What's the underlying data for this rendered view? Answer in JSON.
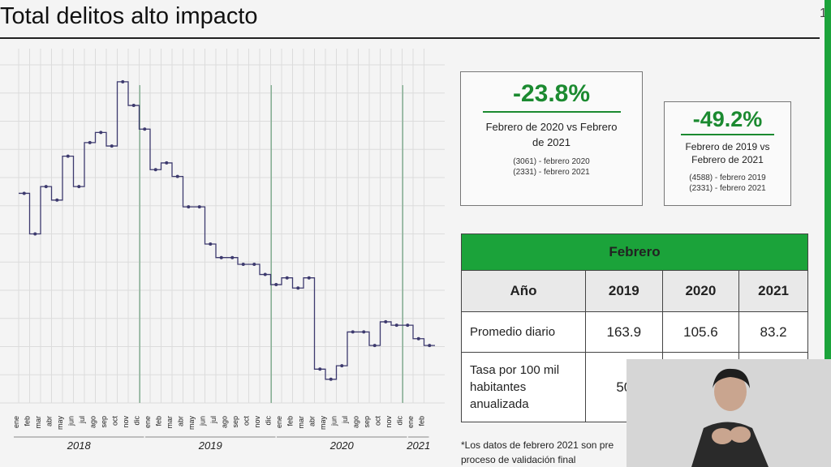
{
  "title": "Total delitos alto impacto",
  "page_number": "1",
  "summary_boxes": [
    {
      "percent": "-23.8%",
      "description": "Febrero de 2020 vs Febrero de 2021",
      "detail_1": "(3061) - febrero 2020",
      "detail_2": "(2331) - febrero 2021"
    },
    {
      "percent": "-49.2%",
      "description": "Febrero de 2019 vs Febrero de 2021",
      "detail_1": "(4588) - febrero 2019",
      "detail_2": "(2331) - febrero 2021"
    }
  ],
  "table": {
    "header": "Febrero",
    "columns": [
      "Año",
      "2019",
      "2020",
      "2021"
    ],
    "rows": [
      {
        "label": "Promedio diario",
        "values": [
          "163.9",
          "105.6",
          "83.2"
        ]
      },
      {
        "label": "Tasa por 100 mil habitantes anualizada",
        "values": [
          "50",
          "",
          ""
        ]
      }
    ]
  },
  "footnote": "*Los datos de febrero 2021 son pre proceso de validación final",
  "colors": {
    "accent": "#1ba33a",
    "line": "#3d3a6e"
  },
  "chart_data": {
    "type": "line",
    "step": true,
    "title": "",
    "xlabel": "",
    "ylabel": "",
    "years": [
      "2018",
      "2019",
      "2020",
      "2021"
    ],
    "months": [
      "ene",
      "feb",
      "mar",
      "abr",
      "may",
      "jun",
      "jul",
      "ago",
      "sep",
      "oct",
      "nov",
      "dic",
      "ene",
      "feb",
      "mar",
      "abr",
      "may",
      "jun",
      "jul",
      "ago",
      "sep",
      "oct",
      "nov",
      "dic",
      "ene",
      "feb",
      "mar",
      "abr",
      "may",
      "jun",
      "jul",
      "ago",
      "sep",
      "oct",
      "nov",
      "dic",
      "ene",
      "feb"
    ],
    "values": [
      62,
      50,
      64,
      60,
      73,
      64,
      77,
      80,
      76,
      95,
      88,
      81,
      69,
      71,
      67,
      58,
      58,
      47,
      43,
      43,
      41,
      41,
      38,
      35,
      37,
      34,
      37,
      10,
      7,
      11,
      21,
      21,
      17,
      24,
      23,
      23,
      19,
      17
    ],
    "ylim": [
      0,
      100
    ],
    "grid": true
  }
}
